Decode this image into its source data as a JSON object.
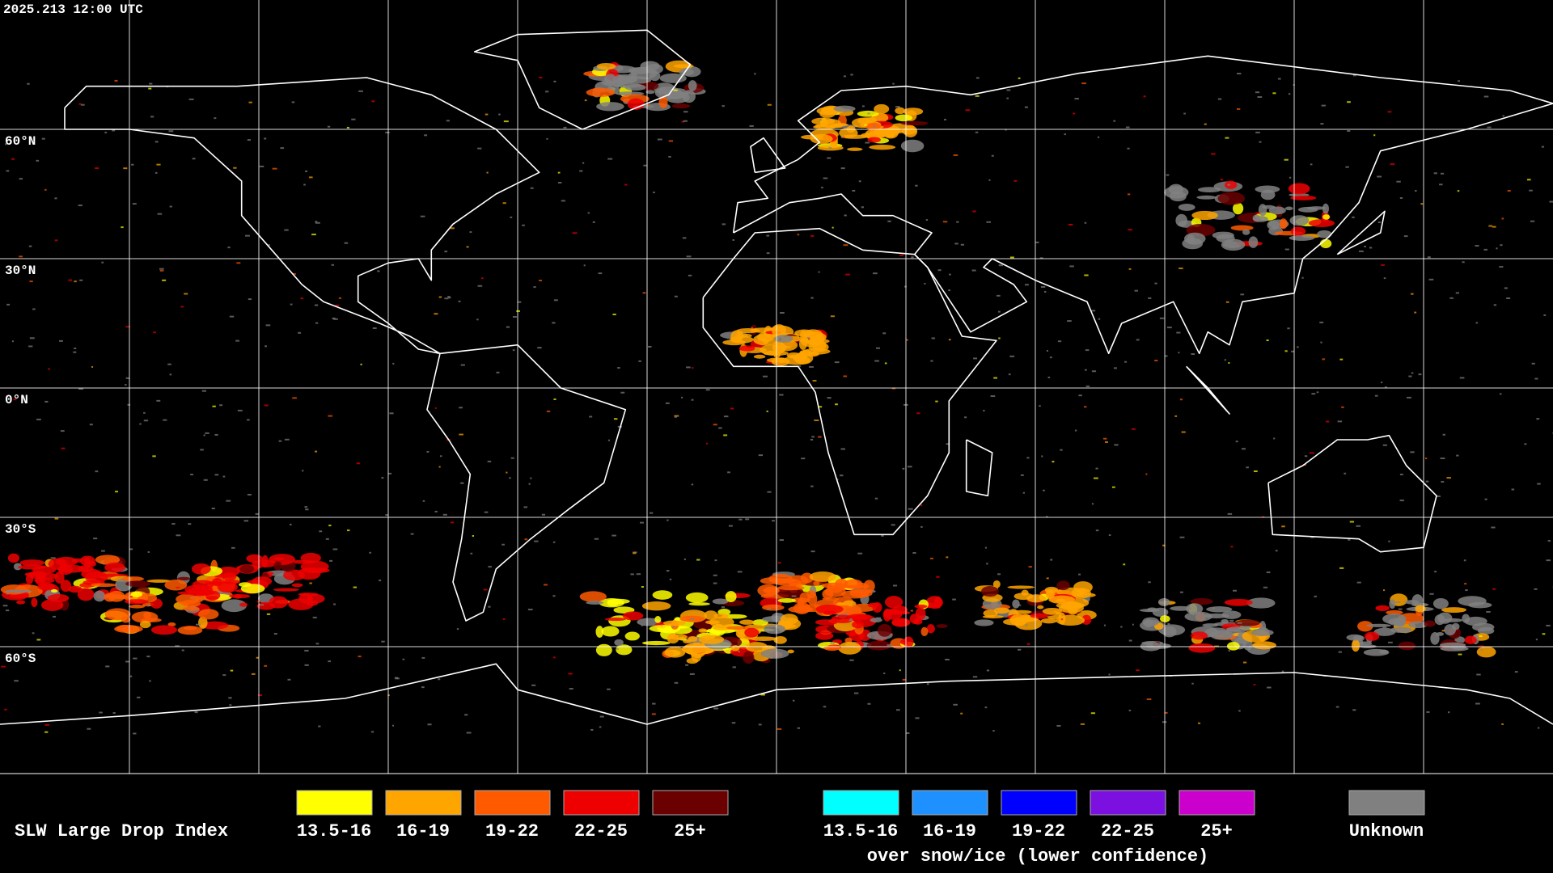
{
  "timestamp": "2025.213 12:00 UTC",
  "latitude_labels": [
    "60°N",
    "30°N",
    "0°N",
    "30°S",
    "60°S"
  ],
  "legend": {
    "title": "SLW Large Drop Index",
    "items": [
      {
        "label": "13.5-16",
        "color": "#ffff00"
      },
      {
        "label": "16-19",
        "color": "#ffa500"
      },
      {
        "label": "19-22",
        "color": "#ff5a00"
      },
      {
        "label": "22-25",
        "color": "#ee0000"
      },
      {
        "label": "25+",
        "color": "#6b0000"
      }
    ],
    "snow_items": [
      {
        "label": "13.5-16",
        "color": "#00ffff"
      },
      {
        "label": "16-19",
        "color": "#1e90ff"
      },
      {
        "label": "19-22",
        "color": "#0000ff"
      },
      {
        "label": "22-25",
        "color": "#7b10e0"
      },
      {
        "label": "25+",
        "color": "#cc00cc"
      }
    ],
    "snow_caption": "over snow/ice (lower confidence)",
    "unknown": {
      "label": "Unknown",
      "color": "#808080"
    }
  }
}
